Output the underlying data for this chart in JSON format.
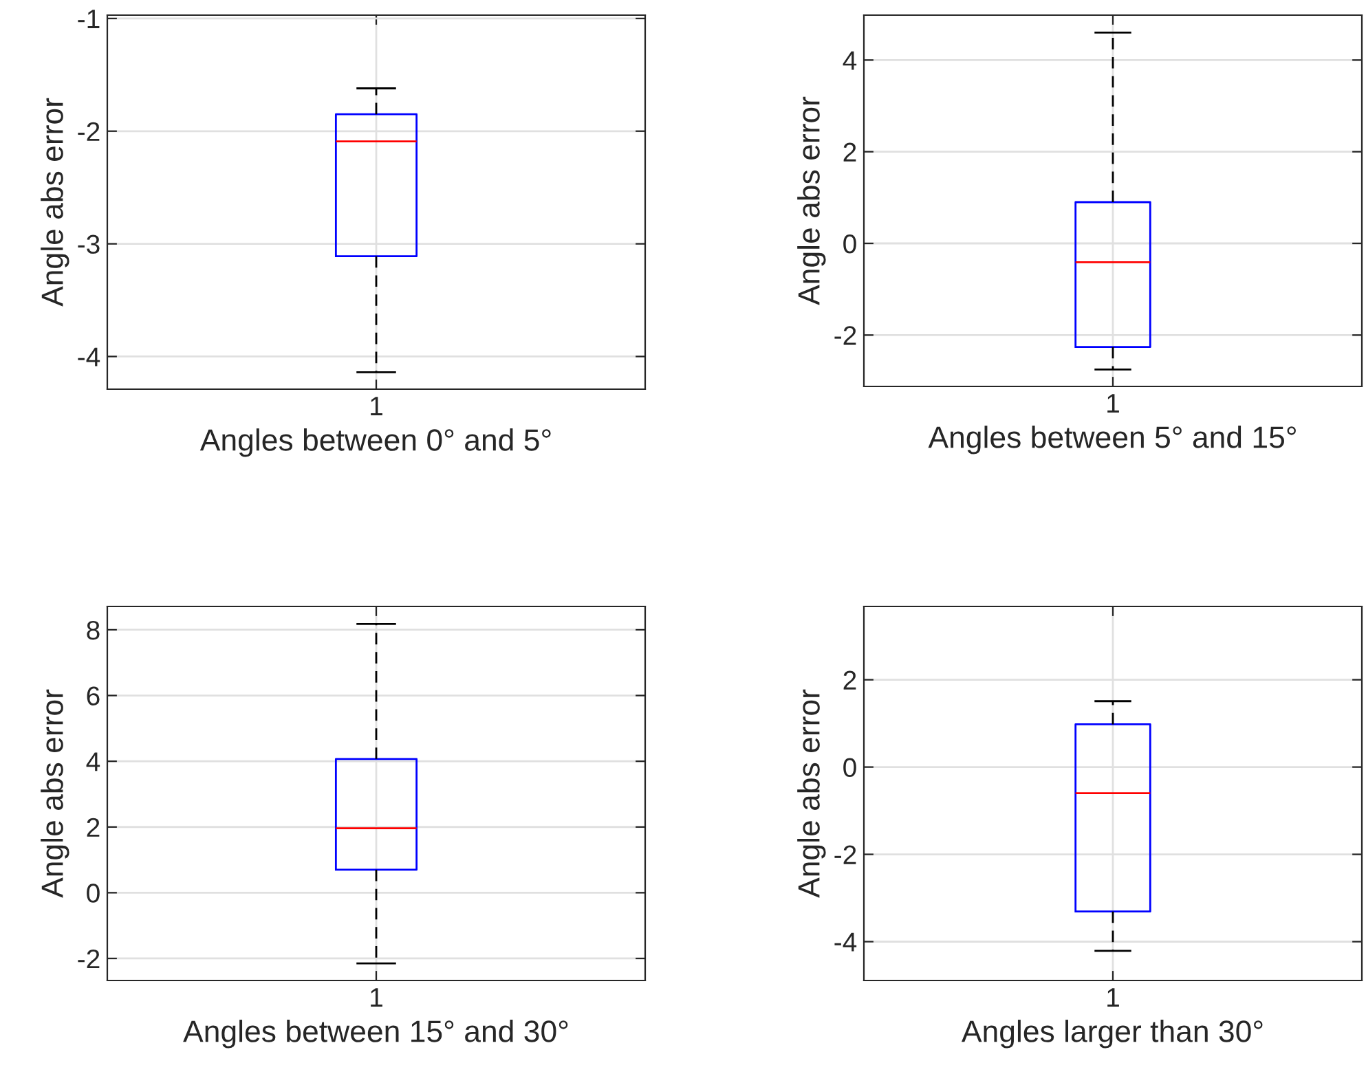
{
  "chart_data": [
    {
      "type": "box",
      "categories": [
        "1"
      ],
      "xlabel": "Angles between 0° and 5°",
      "ylabel": "Angle abs error",
      "ylim": [
        -4.29,
        -0.97
      ],
      "yticks": [
        -4,
        -3,
        -2,
        -1
      ],
      "grid": true,
      "series": [
        {
          "color": "#0000ff",
          "boxes": [
            {
              "low": -4.14,
              "q1": -3.11,
              "median": -2.09,
              "q3": -1.85,
              "high": -1.62
            }
          ]
        }
      ]
    },
    {
      "type": "box",
      "categories": [
        "1"
      ],
      "xlabel": "Angles between 5° and 15°",
      "ylabel": "Angle abs error",
      "ylim": [
        -3.12,
        4.98
      ],
      "yticks": [
        -2,
        0,
        2,
        4
      ],
      "grid": true,
      "series": [
        {
          "color": "#0000ff",
          "boxes": [
            {
              "low": -2.75,
              "q1": -2.26,
              "median": -0.41,
              "q3": 0.9,
              "high": 4.6
            }
          ]
        }
      ]
    },
    {
      "type": "box",
      "categories": [
        "1"
      ],
      "xlabel": "Angles between 15° and 30°",
      "ylabel": "Angle abs error",
      "ylim": [
        -2.67,
        8.71
      ],
      "yticks": [
        -2,
        0,
        2,
        4,
        6,
        8
      ],
      "grid": true,
      "series": [
        {
          "color": "#0000ff",
          "boxes": [
            {
              "low": -2.15,
              "q1": 0.7,
              "median": 1.96,
              "q3": 4.07,
              "high": 8.18
            }
          ]
        }
      ]
    },
    {
      "type": "box",
      "categories": [
        "1"
      ],
      "xlabel": "Angles larger than 30°",
      "ylabel": "Angle abs error",
      "ylim": [
        -4.89,
        3.68
      ],
      "yticks": [
        -4,
        -2,
        0,
        2
      ],
      "grid": true,
      "series": [
        {
          "color": "#0000ff",
          "boxes": [
            {
              "low": -4.21,
              "q1": -3.31,
              "median": -0.6,
              "q3": 0.98,
              "high": 1.51
            }
          ]
        }
      ]
    }
  ]
}
